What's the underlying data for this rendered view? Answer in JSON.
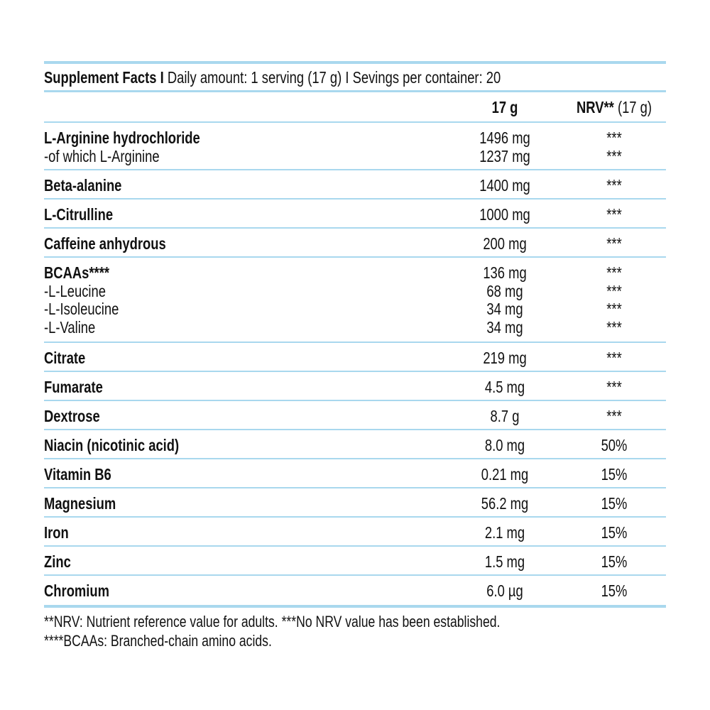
{
  "header": {
    "title_bold": "Supplement Facts I",
    "title_rest": "Daily amount: 1 serving (17 g) I Sevings per container: 20"
  },
  "columns": {
    "amount": "17 g",
    "nrv_bold": "NRV**",
    "nrv_rest": "(17 g)"
  },
  "rows": [
    {
      "lines": [
        {
          "name": "L-Arginine hydrochloride",
          "amount": "1496 mg",
          "nrv": "***"
        },
        {
          "name": "-of which L-Arginine",
          "amount": "1237 mg",
          "nrv": "***"
        }
      ]
    },
    {
      "lines": [
        {
          "name": "Beta-alanine",
          "amount": "1400 mg",
          "nrv": "***"
        }
      ]
    },
    {
      "lines": [
        {
          "name": "L-Citrulline",
          "amount": "1000 mg",
          "nrv": "***"
        }
      ]
    },
    {
      "lines": [
        {
          "name": "Caffeine anhydrous",
          "amount": "200 mg",
          "nrv": "***"
        }
      ]
    },
    {
      "lines": [
        {
          "name": "BCAAs****",
          "amount": "136 mg",
          "nrv": "***"
        },
        {
          "name": "-L-Leucine",
          "amount": "68 mg",
          "nrv": "***"
        },
        {
          "name": "-L-Isoleucine",
          "amount": "34 mg",
          "nrv": "***"
        },
        {
          "name": "-L-Valine",
          "amount": "34 mg",
          "nrv": "***"
        }
      ]
    },
    {
      "lines": [
        {
          "name": "Citrate",
          "amount": "219 mg",
          "nrv": "***"
        }
      ]
    },
    {
      "lines": [
        {
          "name": "Fumarate",
          "amount": "4.5 mg",
          "nrv": "***"
        }
      ]
    },
    {
      "lines": [
        {
          "name": "Dextrose",
          "amount": "8.7 g",
          "nrv": "***"
        }
      ]
    },
    {
      "lines": [
        {
          "name": "Niacin (nicotinic acid)",
          "amount": "8.0 mg",
          "nrv": "50%"
        }
      ]
    },
    {
      "lines": [
        {
          "name": "Vitamin B6",
          "amount": "0.21 mg",
          "nrv": "15%"
        }
      ]
    },
    {
      "lines": [
        {
          "name": "Magnesium",
          "amount": "56.2 mg",
          "nrv": "15%"
        }
      ]
    },
    {
      "lines": [
        {
          "name": "Iron",
          "amount": "2.1 mg",
          "nrv": "15%"
        }
      ]
    },
    {
      "lines": [
        {
          "name": "Zinc",
          "amount": "1.5 mg",
          "nrv": "15%"
        }
      ]
    },
    {
      "lines": [
        {
          "name": "Chromium",
          "amount": "6.0 µg",
          "nrv": "15%"
        }
      ]
    }
  ],
  "footnotes": [
    "**NRV: Nutrient reference value for adults. ***No NRV value has been established.",
    "****BCAAs: Branched-chain amino acids."
  ]
}
